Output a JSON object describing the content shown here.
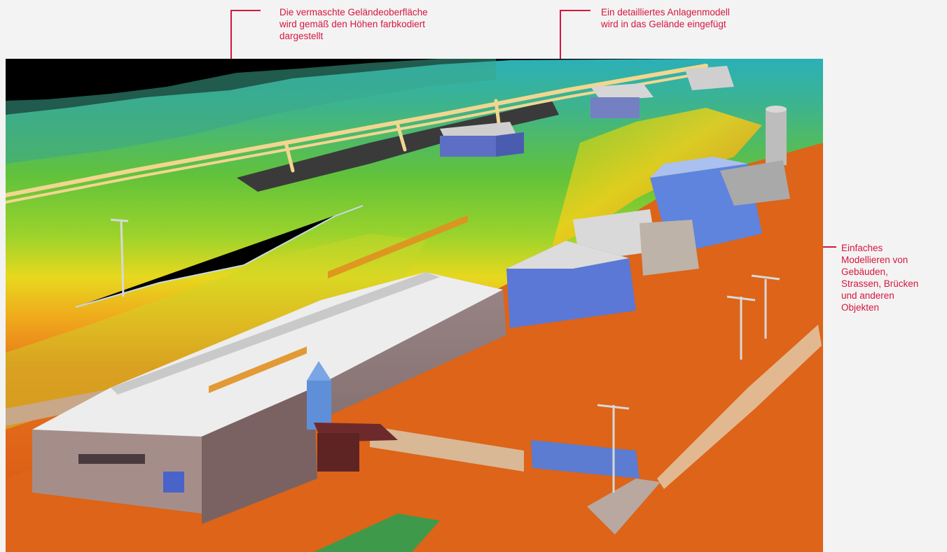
{
  "annotations": {
    "terrain": "Die vermaschte Geländeoberfläche\nwird gemäß den Höhen farbkodiert\ndargestellt",
    "plant_model": "Ein detailliertes Anlagenmodell\nwird in das Gelände eingefügt",
    "buildings": "Einfaches\nModellieren von\nGebäuden,\nStrassen, Brücken\nund anderen\nObjekten"
  },
  "colors": {
    "annotation": "#d6163f",
    "sky": "#000000",
    "terrain_low": "#e0641c",
    "terrain_mid": "#f0d020",
    "terrain_high": "#56b83a",
    "terrain_peak": "#2ab0b8",
    "roof": "#e8e8e8",
    "building_blue": "#5a7fd8",
    "building_brown": "#8a7676",
    "pipe": "#f2d690"
  }
}
